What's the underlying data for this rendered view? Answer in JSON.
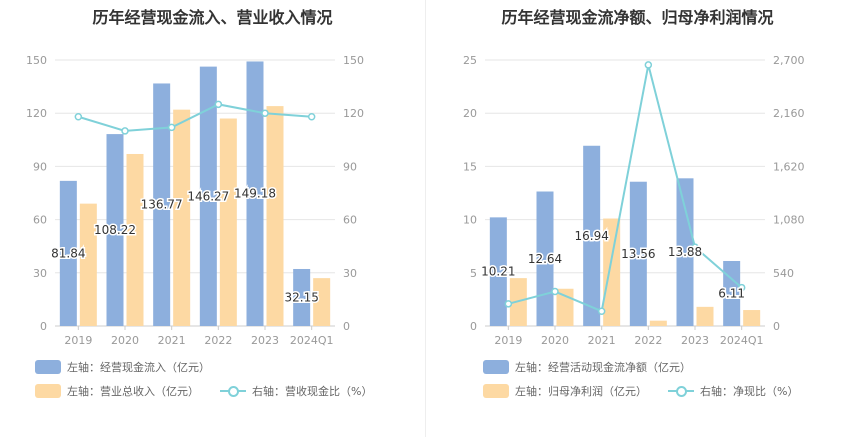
{
  "colors": {
    "bar_primary": "#8dafdd",
    "bar_secondary": "#fdd9a3",
    "line": "#7fd1d9",
    "axis_text": "#999999",
    "grid": "#e6e6e6",
    "label": "#333333"
  },
  "chart_data": [
    {
      "type": "bar",
      "title": "历年经营现金流入、营业收入情况",
      "categories": [
        "2019",
        "2020",
        "2021",
        "2022",
        "2023",
        "2024Q1"
      ],
      "y_left": {
        "ticks": [
          "0",
          "30",
          "60",
          "90",
          "120",
          "150"
        ],
        "range": [
          0,
          150
        ]
      },
      "y_right": {
        "ticks": [
          "0",
          "30",
          "60",
          "90",
          "120",
          "150"
        ],
        "range": [
          0,
          150
        ]
      },
      "series": [
        {
          "name": "左轴：经营现金流入（亿元）",
          "kind": "bar",
          "axis": "left",
          "values": [
            81.84,
            108.22,
            136.77,
            146.27,
            149.18,
            32.15
          ],
          "labels": [
            "81.84",
            "108.22",
            "136.77",
            "146.27",
            "149.18",
            "32.15"
          ]
        },
        {
          "name": "左轴：营业总收入（亿元）",
          "kind": "bar",
          "axis": "left",
          "values": [
            69,
            97,
            122,
            117,
            124,
            27
          ]
        },
        {
          "name": "右轴：营收现金比（%）",
          "kind": "line",
          "axis": "right",
          "values": [
            118,
            110,
            112,
            125,
            120,
            118
          ]
        }
      ]
    },
    {
      "type": "bar",
      "title": "历年经营现金流净额、归母净利润情况",
      "categories": [
        "2019",
        "2020",
        "2021",
        "2022",
        "2023",
        "2024Q1"
      ],
      "y_left": {
        "ticks": [
          "0",
          "5",
          "10",
          "15",
          "20",
          "25"
        ],
        "range": [
          0,
          25
        ]
      },
      "y_right": {
        "ticks": [
          "0",
          "540",
          "1,080",
          "1,620",
          "2,160",
          "2,700"
        ],
        "range": [
          0,
          2700
        ]
      },
      "series": [
        {
          "name": "左轴：经营活动现金流净额（亿元）",
          "kind": "bar",
          "axis": "left",
          "values": [
            10.21,
            12.64,
            16.94,
            13.56,
            13.88,
            6.11
          ],
          "labels": [
            "10.21",
            "12.64",
            "16.94",
            "13.56",
            "13.88",
            "6.11"
          ]
        },
        {
          "name": "左轴：归母净利润（亿元）",
          "kind": "bar",
          "axis": "left",
          "values": [
            4.5,
            3.5,
            10.1,
            0.5,
            1.8,
            1.5
          ]
        },
        {
          "name": "右轴：净现比（%）",
          "kind": "line",
          "axis": "right",
          "values": [
            225,
            350,
            150,
            2650,
            800,
            390
          ]
        }
      ]
    }
  ]
}
